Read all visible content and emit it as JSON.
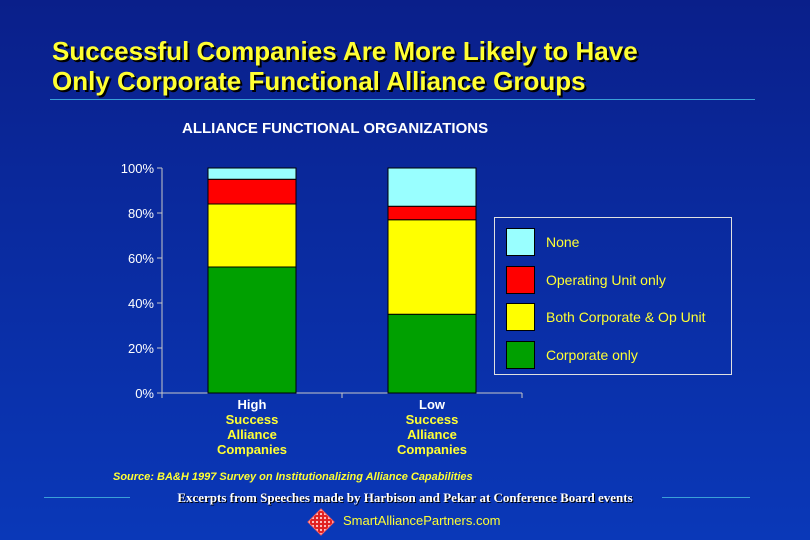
{
  "title": {
    "line1": "Successful Companies Are More Likely to Have",
    "line2": "Only Corporate Functional Alliance Groups"
  },
  "chart_data": {
    "type": "bar",
    "stacked": true,
    "title": "ALLIANCE FUNCTIONAL ORGANIZATIONS",
    "categories": [
      [
        "High",
        "Success",
        "Alliance",
        "Companies"
      ],
      [
        "Low",
        "Success",
        "Alliance",
        "Companies"
      ]
    ],
    "series": [
      {
        "name": "Corporate only",
        "color": "#00a000",
        "values": [
          56,
          35
        ]
      },
      {
        "name": "Both Corporate & Op Unit",
        "color": "#ffff00",
        "values": [
          28,
          42
        ]
      },
      {
        "name": "Operating Unit only",
        "color": "#ff0000",
        "values": [
          11,
          6
        ]
      },
      {
        "name": "None",
        "color": "#99ffff",
        "values": [
          5,
          17
        ]
      }
    ],
    "yticks": [
      "0%",
      "20%",
      "40%",
      "60%",
      "80%",
      "100%"
    ],
    "ylim": [
      0,
      100
    ],
    "legend_position": "right"
  },
  "source": "Source:  BA&H 1997 Survey on Institutionalizing Alliance Capabilities",
  "footer": "Excerpts from Speeches made by Harbison and Pekar at Conference Board events",
  "website": "SmartAlliancePartners.com",
  "logo_icon": "diamond-grid-logo-icon"
}
